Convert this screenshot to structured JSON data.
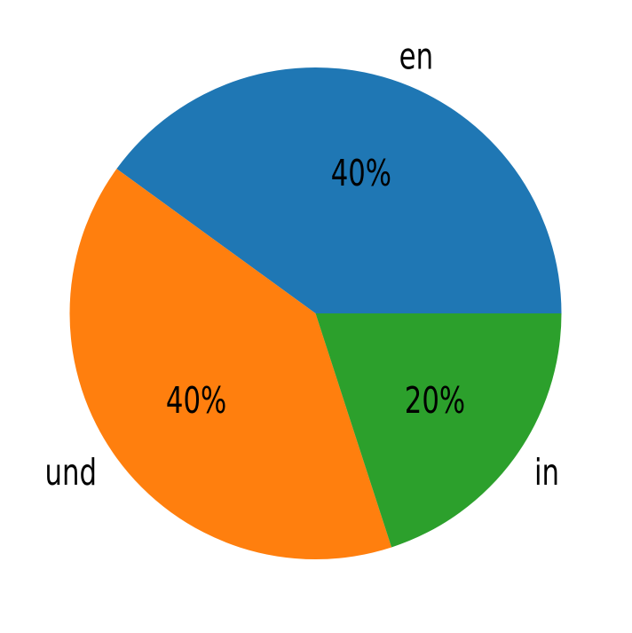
{
  "chart_data": {
    "type": "pie",
    "categories": [
      "en",
      "und",
      "in"
    ],
    "values": [
      40,
      40,
      20
    ],
    "slices": [
      {
        "label": "en",
        "value": 40,
        "pct_label": "40%",
        "color": "#1f77b4"
      },
      {
        "label": "und",
        "value": 40,
        "pct_label": "40%",
        "color": "#ff7f0e"
      },
      {
        "label": "in",
        "value": 20,
        "pct_label": "20%",
        "color": "#2ca02c"
      }
    ],
    "start_angle": 0,
    "direction": "counterclockwise",
    "label_distance": 1.1,
    "pct_distance": 0.6,
    "text_color": "#000000",
    "background_color": "#ffffff",
    "legend": "none",
    "grid": "off"
  }
}
